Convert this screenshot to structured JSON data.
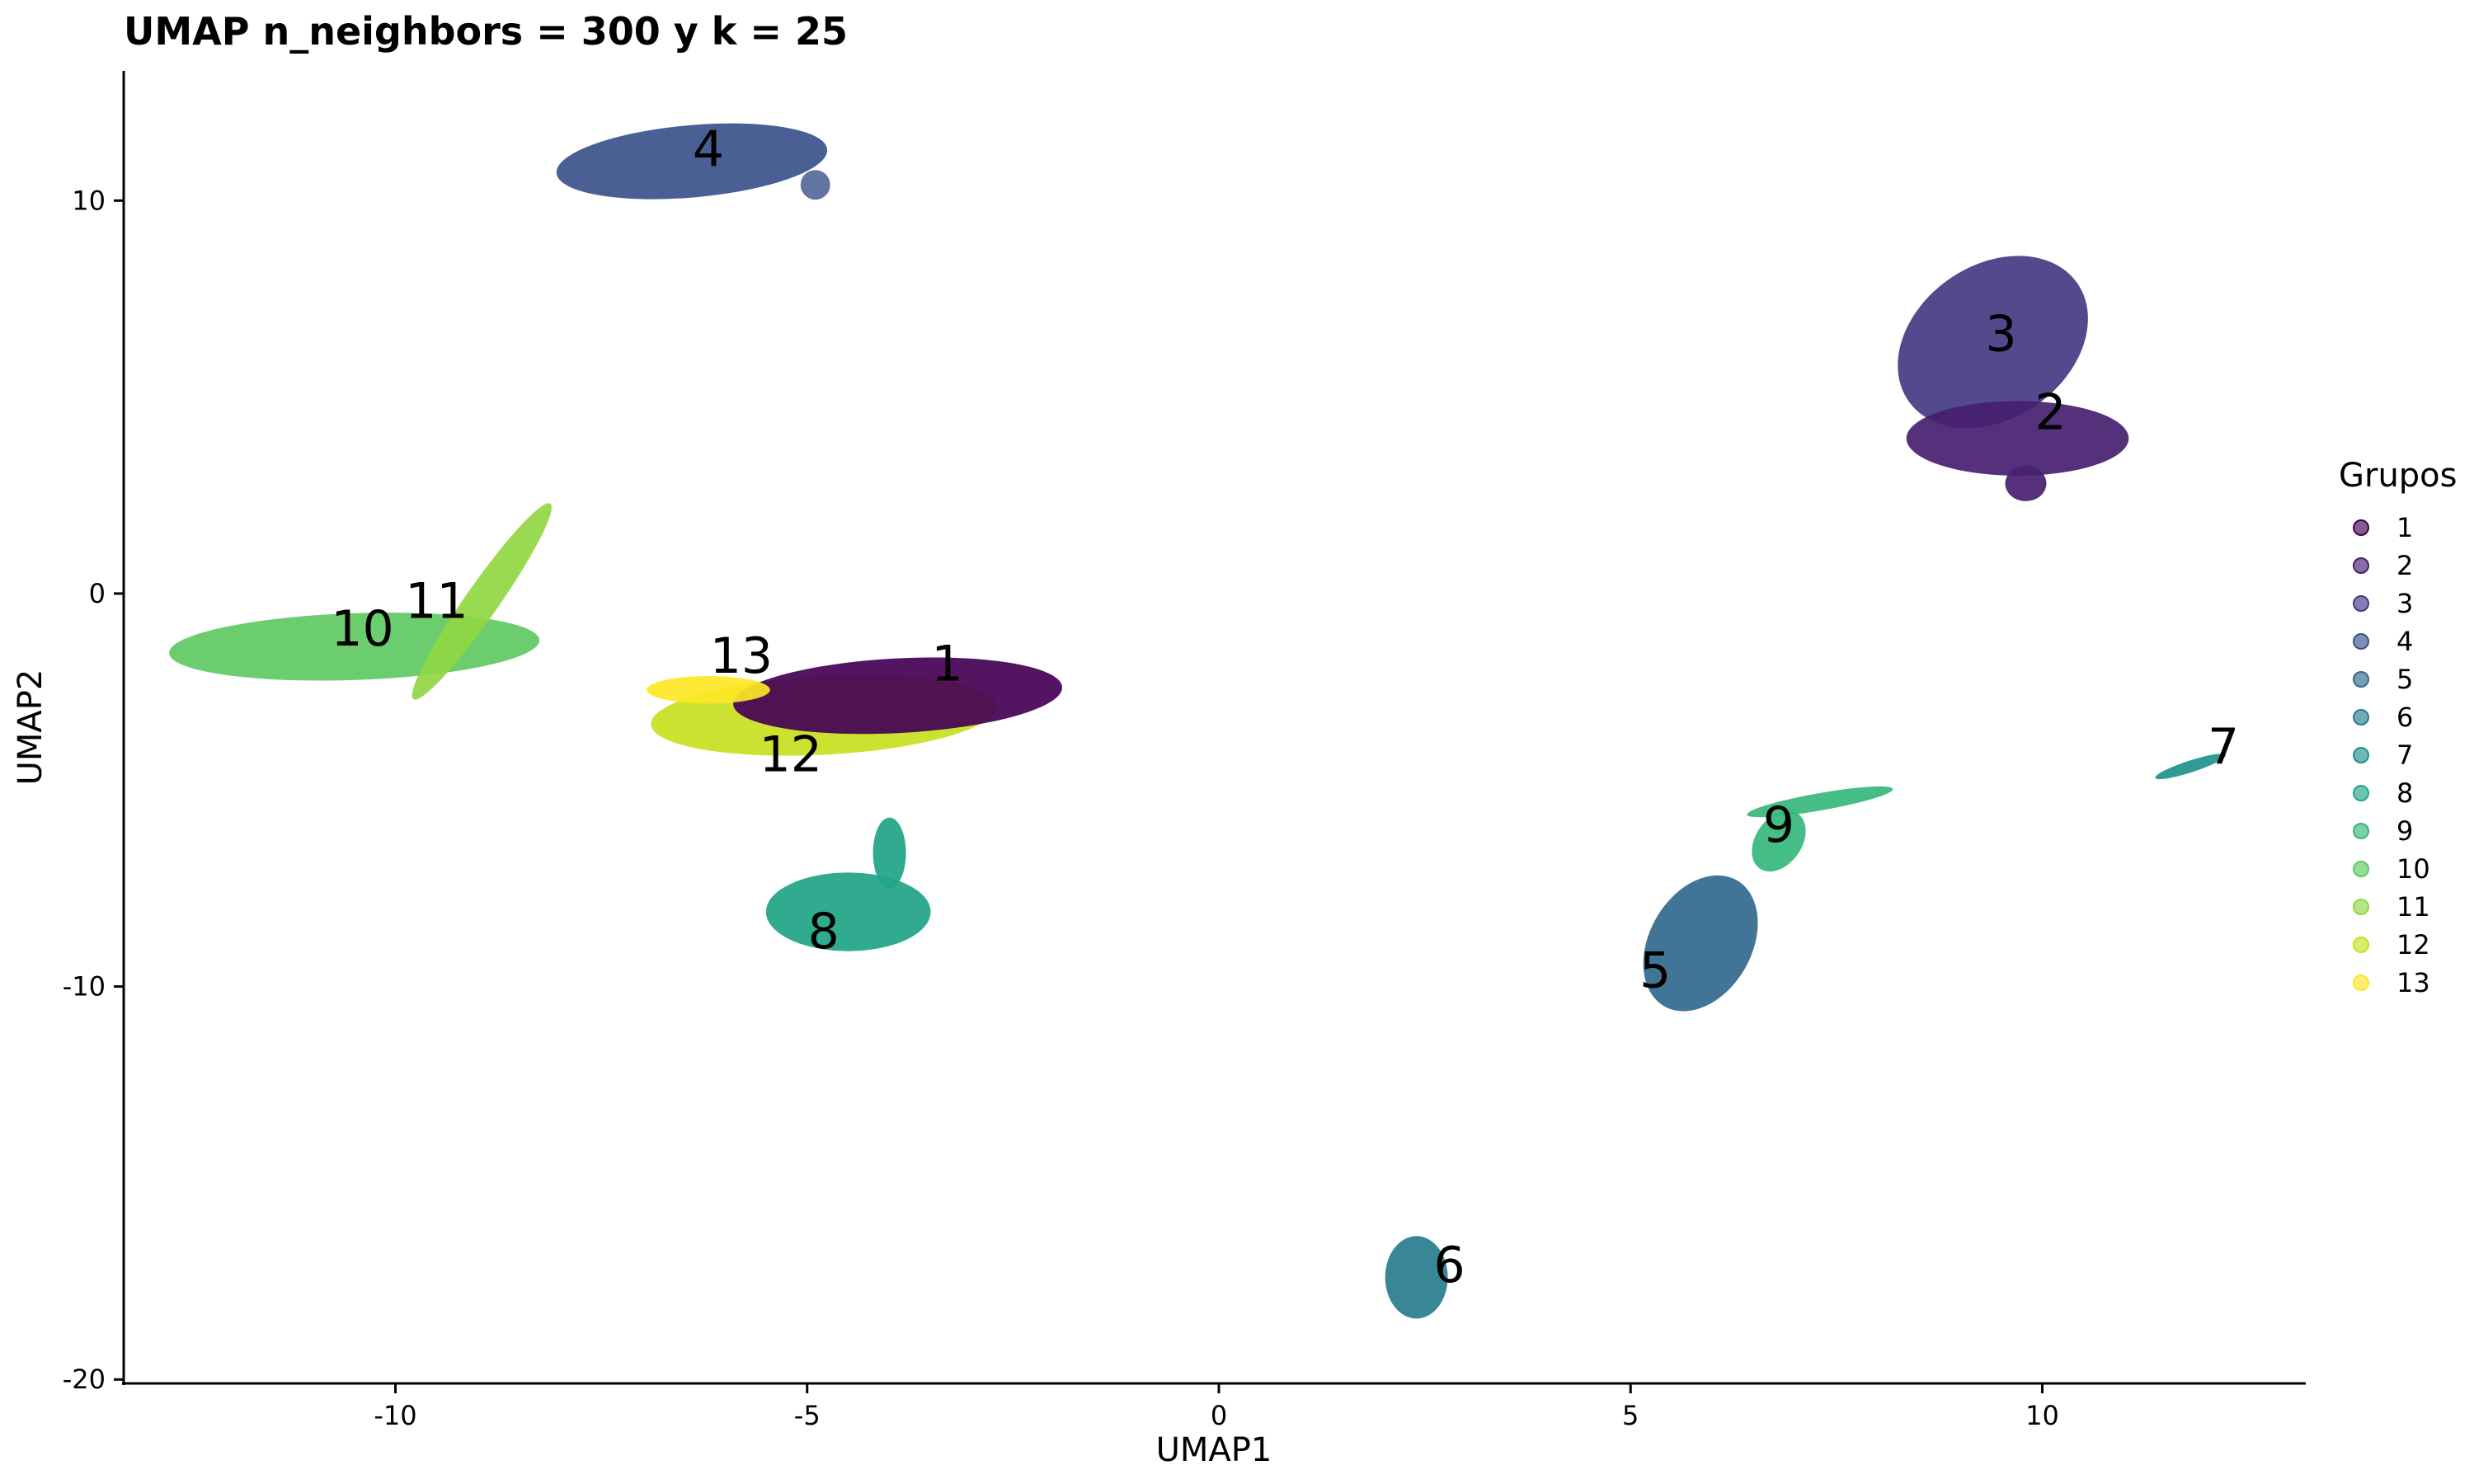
{
  "chart_data": {
    "type": "scatter",
    "title": "UMAP n_neighbors = 300 y k = 25",
    "xlabel": "UMAP1",
    "ylabel": "UMAP2",
    "xlim": [
      -13.3,
      13.2
    ],
    "ylim": [
      -20.1,
      13.3
    ],
    "x_ticks": [
      -10,
      -5,
      0,
      5,
      10
    ],
    "y_ticks": [
      -20,
      -10,
      0,
      10
    ],
    "x_tick_labels": [
      "-10",
      "-5",
      "0",
      "5",
      "10"
    ],
    "y_tick_labels": [
      "-20",
      "-10",
      "0",
      "10"
    ],
    "grid": false,
    "legend": {
      "title": "Grupos",
      "placement": "right",
      "entries": [
        "1",
        "2",
        "3",
        "4",
        "5",
        "6",
        "7",
        "8",
        "9",
        "10",
        "11",
        "12",
        "13"
      ]
    },
    "colors": {
      "1": "#440154",
      "2": "#481f70",
      "3": "#443983",
      "4": "#3b528b",
      "5": "#31688e",
      "6": "#287c8e",
      "7": "#21918c",
      "8": "#20a486",
      "9": "#35b779",
      "10": "#5ec962",
      "11": "#90d743",
      "12": "#c8e020",
      "13": "#fde725"
    },
    "clusters": [
      {
        "group": "1",
        "center": [
          -4.0,
          -2.7
        ],
        "label_pos": [
          -3.3,
          -1.8
        ]
      },
      {
        "group": "2",
        "center": [
          9.6,
          3.8
        ],
        "label_pos": [
          10.1,
          4.6
        ]
      },
      {
        "group": "3",
        "center": [
          9.4,
          6.4
        ],
        "label_pos": [
          9.5,
          6.6
        ]
      },
      {
        "group": "4",
        "center": [
          -6.4,
          11.0
        ],
        "label_pos": [
          -6.2,
          11.3
        ]
      },
      {
        "group": "5",
        "center": [
          5.8,
          -8.9
        ],
        "label_pos": [
          5.3,
          -9.6
        ]
      },
      {
        "group": "6",
        "center": [
          2.4,
          -17.4
        ],
        "label_pos": [
          2.8,
          -17.1
        ]
      },
      {
        "group": "7",
        "center": [
          11.8,
          -4.4
        ],
        "label_pos": [
          12.2,
          -3.9
        ]
      },
      {
        "group": "8",
        "center": [
          -4.5,
          -8.1
        ],
        "label_pos": [
          -4.8,
          -8.6
        ]
      },
      {
        "group": "9",
        "center": [
          7.0,
          -5.6
        ],
        "label_pos": [
          6.8,
          -5.9
        ]
      },
      {
        "group": "10",
        "center": [
          -10.5,
          -1.3
        ],
        "label_pos": [
          -10.4,
          -0.9
        ]
      },
      {
        "group": "11",
        "center": [
          -9.3,
          -0.1
        ],
        "label_pos": [
          -9.5,
          -0.2
        ]
      },
      {
        "group": "12",
        "center": [
          -4.8,
          -3.1
        ],
        "label_pos": [
          -5.2,
          -4.1
        ]
      },
      {
        "group": "13",
        "center": [
          -6.0,
          -2.4
        ],
        "label_pos": [
          -5.8,
          -1.6
        ]
      }
    ]
  }
}
